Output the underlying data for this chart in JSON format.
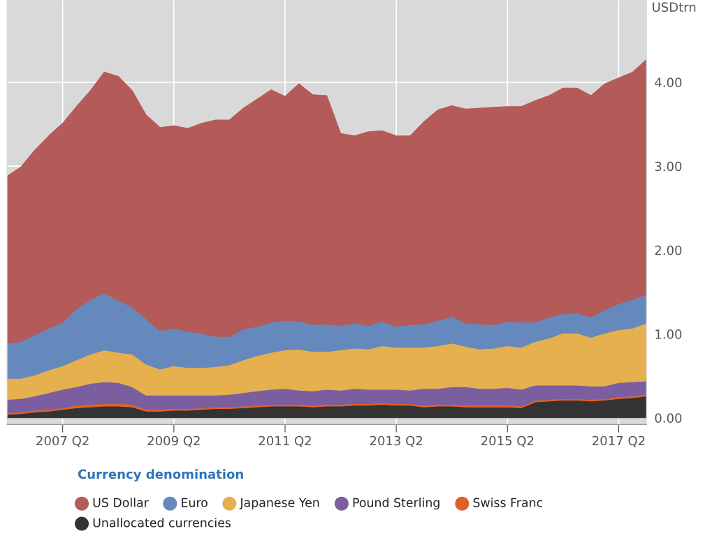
{
  "chart_data": {
    "type": "area",
    "stacked": true,
    "ylabel": "USDtrn",
    "legend_title": "Currency denomination",
    "legend": "bottom",
    "grid": true,
    "categories": [
      null,
      null,
      null,
      null,
      "2007 Q2",
      null,
      null,
      null,
      null,
      null,
      null,
      null,
      "2009 Q2",
      null,
      null,
      null,
      null,
      null,
      null,
      null,
      "2011 Q2",
      null,
      null,
      null,
      null,
      null,
      null,
      null,
      "2013 Q2",
      null,
      null,
      null,
      null,
      null,
      null,
      null,
      "2015 Q2",
      null,
      null,
      null,
      null,
      null,
      null,
      null,
      "2017 Q2",
      null,
      null
    ],
    "ylim": [
      -0.08,
      4.98
    ],
    "yticks": [
      {
        "value": 0,
        "label": "0.00"
      },
      {
        "value": 1,
        "label": "1.00"
      },
      {
        "value": 2,
        "label": "2.00"
      },
      {
        "value": 3,
        "label": "3.00"
      },
      {
        "value": 4,
        "label": "4.00"
      }
    ],
    "series": [
      {
        "name": "Unallocated currencies",
        "color": "#333333",
        "values": [
          0.04,
          0.05,
          0.07,
          0.08,
          0.1,
          0.12,
          0.13,
          0.14,
          0.14,
          0.13,
          0.08,
          0.08,
          0.09,
          0.09,
          0.1,
          0.11,
          0.11,
          0.12,
          0.13,
          0.14,
          0.14,
          0.14,
          0.13,
          0.14,
          0.14,
          0.15,
          0.15,
          0.16,
          0.15,
          0.15,
          0.13,
          0.14,
          0.14,
          0.13,
          0.13,
          0.13,
          0.13,
          0.12,
          0.19,
          0.2,
          0.21,
          0.21,
          0.2,
          0.21,
          0.23,
          0.24,
          0.26
        ]
      },
      {
        "name": "Swiss Franc",
        "color": "#e0622a",
        "values": [
          0.02,
          0.02,
          0.02,
          0.02,
          0.02,
          0.03,
          0.03,
          0.03,
          0.03,
          0.03,
          0.02,
          0.02,
          0.02,
          0.02,
          0.02,
          0.02,
          0.02,
          0.02,
          0.02,
          0.02,
          0.02,
          0.02,
          0.02,
          0.02,
          0.02,
          0.02,
          0.02,
          0.02,
          0.02,
          0.02,
          0.02,
          0.02,
          0.02,
          0.02,
          0.02,
          0.02,
          0.02,
          0.02,
          0.02,
          0.02,
          0.02,
          0.02,
          0.02,
          0.02,
          0.02,
          0.02,
          0.02
        ]
      },
      {
        "name": "Pound Sterling",
        "color": "#7b5ea0",
        "values": [
          0.16,
          0.16,
          0.17,
          0.2,
          0.22,
          0.22,
          0.25,
          0.26,
          0.25,
          0.21,
          0.17,
          0.17,
          0.16,
          0.16,
          0.15,
          0.14,
          0.15,
          0.16,
          0.17,
          0.18,
          0.19,
          0.17,
          0.17,
          0.18,
          0.17,
          0.18,
          0.17,
          0.16,
          0.17,
          0.16,
          0.2,
          0.19,
          0.21,
          0.22,
          0.2,
          0.2,
          0.21,
          0.2,
          0.18,
          0.17,
          0.16,
          0.16,
          0.16,
          0.15,
          0.17,
          0.17,
          0.16
        ]
      },
      {
        "name": "Japanese Yen",
        "color": "#e6b04e",
        "values": [
          0.25,
          0.24,
          0.25,
          0.27,
          0.28,
          0.32,
          0.35,
          0.38,
          0.36,
          0.39,
          0.37,
          0.31,
          0.35,
          0.33,
          0.33,
          0.34,
          0.35,
          0.39,
          0.42,
          0.44,
          0.46,
          0.49,
          0.47,
          0.45,
          0.48,
          0.48,
          0.48,
          0.52,
          0.5,
          0.51,
          0.49,
          0.51,
          0.52,
          0.48,
          0.47,
          0.48,
          0.5,
          0.5,
          0.52,
          0.56,
          0.62,
          0.62,
          0.58,
          0.63,
          0.63,
          0.64,
          0.69
        ]
      },
      {
        "name": "Euro",
        "color": "#6589bd",
        "values": [
          0.42,
          0.44,
          0.48,
          0.5,
          0.52,
          0.61,
          0.65,
          0.68,
          0.62,
          0.56,
          0.54,
          0.46,
          0.45,
          0.43,
          0.41,
          0.36,
          0.34,
          0.37,
          0.35,
          0.36,
          0.35,
          0.33,
          0.32,
          0.33,
          0.29,
          0.3,
          0.28,
          0.29,
          0.25,
          0.27,
          0.28,
          0.3,
          0.32,
          0.28,
          0.3,
          0.28,
          0.29,
          0.3,
          0.23,
          0.25,
          0.23,
          0.24,
          0.24,
          0.28,
          0.31,
          0.34,
          0.34
        ]
      },
      {
        "name": "US Dollar",
        "color": "#b45a58",
        "values": [
          1.99,
          2.08,
          2.2,
          2.29,
          2.37,
          2.41,
          2.49,
          2.63,
          2.67,
          2.58,
          2.43,
          2.42,
          2.41,
          2.42,
          2.5,
          2.58,
          2.58,
          2.63,
          2.71,
          2.77,
          2.67,
          2.83,
          2.74,
          2.72,
          2.29,
          2.23,
          2.31,
          2.27,
          2.27,
          2.25,
          2.41,
          2.51,
          2.51,
          2.55,
          2.57,
          2.59,
          2.56,
          2.57,
          2.64,
          2.64,
          2.69,
          2.68,
          2.64,
          2.69,
          2.69,
          2.71,
          2.8
        ]
      }
    ]
  }
}
